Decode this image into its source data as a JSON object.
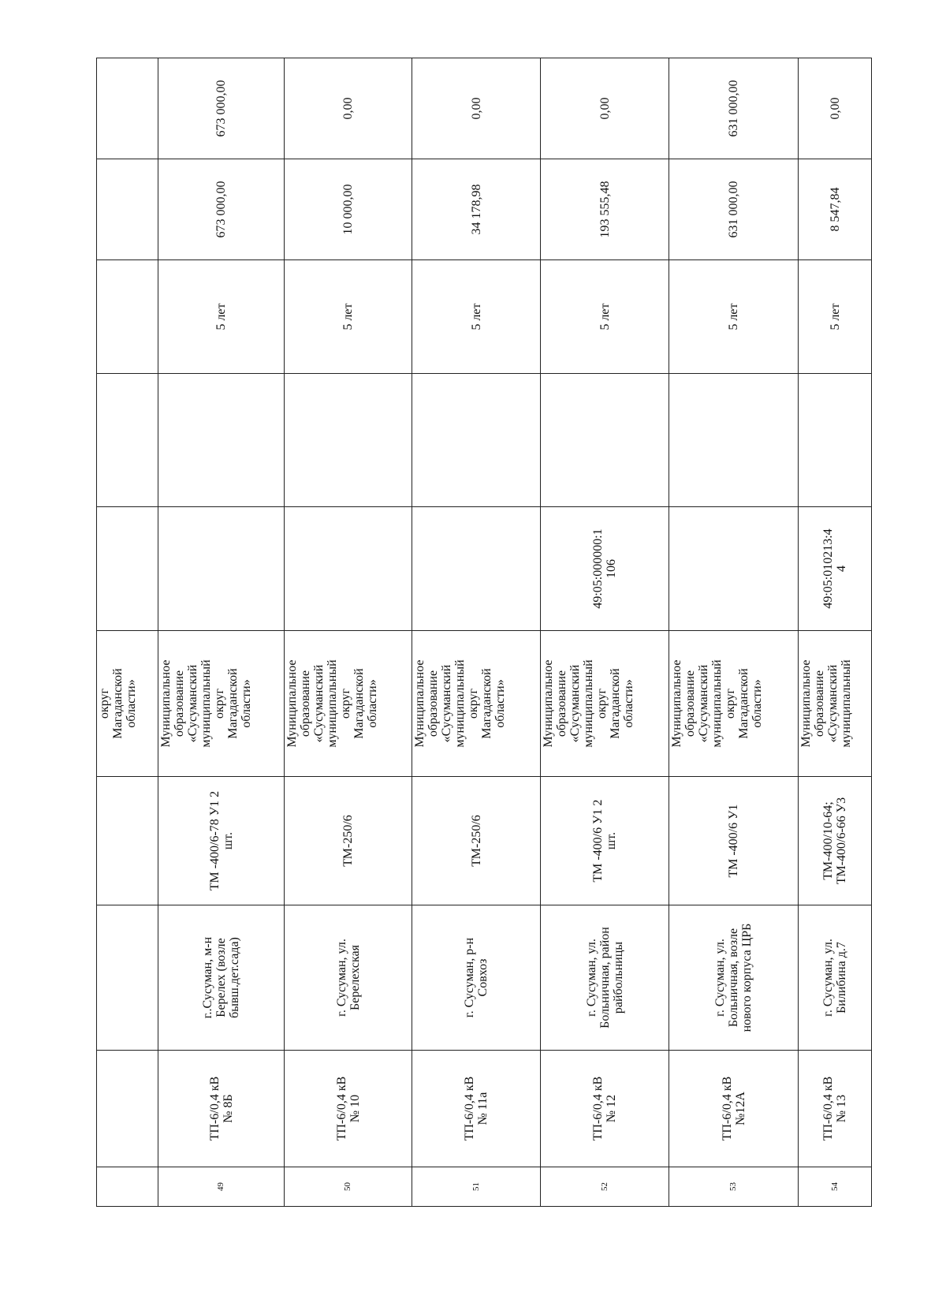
{
  "table": {
    "continuation_owner": "округ\nМагаданской\nобласти»",
    "rows": [
      {
        "num": "49",
        "name": "ТП-6/0,4 кВ\n№ 8Б",
        "address": "г..Сусуман, м-н\nБерелех (возле\nбывш.дет.сада)",
        "type": "ТМ -400/6-78 У1 2\nшт.",
        "owner": "Муниципальное\nобразование\n«Сусуманский\nмуниципальный\nокруг\nМагаданской\nобласти»",
        "cadastral": "",
        "empty": "",
        "term": "5 лет",
        "amount1": "673 000,00",
        "amount2": "673 000,00"
      },
      {
        "num": "50",
        "name": "ТП-6/0,4 кВ\n№ 10",
        "address": "г. Сусуман, ул.\nБерелехская",
        "type": "ТМ-250/6",
        "owner": "Муниципальное\nобразование\n«Сусуманский\nмуниципальный\nокруг\nМагаданской\nобласти»",
        "cadastral": "",
        "empty": "",
        "term": "5 лет",
        "amount1": "10 000,00",
        "amount2": "0,00"
      },
      {
        "num": "51",
        "name": "ТП-6/0,4 кВ\n№ 11а",
        "address": "г. Сусуман, р-н\nСовхоз",
        "type": "ТМ-250/6",
        "owner": "Муниципальное\nобразование\n«Сусуманский\nмуниципальный\nокруг\nМагаданской\nобласти»",
        "cadastral": "",
        "empty": "",
        "term": "5 лет",
        "amount1": "34 178,98",
        "amount2": "0,00"
      },
      {
        "num": "52",
        "name": "ТП-6/0,4 кВ\n№ 12",
        "address": "г. Сусуман, ул.\nБольничная, район\nрайбольницы",
        "type": "ТМ -400/6 У1 2\nшт.",
        "owner": "Муниципальное\nобразование\n«Сусуманский\nмуниципальный\nокруг\nМагаданской\nобласти»",
        "cadastral": "49:05:000000:1\n106",
        "empty": "",
        "term": "5 лет",
        "amount1": "193 555,48",
        "amount2": "0,00"
      },
      {
        "num": "53",
        "name": "ТП-6/0,4 кВ\n№12А",
        "address": "г. Сусуман, ул.\nБольничная, возле\nнового корпуса ЦРБ",
        "type": "ТМ -400/6 У1",
        "owner": "Муниципальное\nобразование\n«Сусуманский\nмуниципальный\nокруг\nМагаданской\nобласти»",
        "cadastral": "",
        "empty": "",
        "term": "5 лет",
        "amount1": "631 000,00",
        "amount2": "631 000,00"
      },
      {
        "num": "54",
        "name": "ТП-6/0,4 кВ\n№ 13",
        "address": "г. Сусуман, ул.\nБилибина д.7",
        "type": "ТМ-400/10-64;\nТМ-400/6-66 У3",
        "owner": "Муниципальное\nобразование\n«Сусуманский\nмуниципальный",
        "cadastral": "49:05:010213:4\n4",
        "empty": "",
        "term": "5 лет",
        "amount1": "8 547,84",
        "amount2": "0,00"
      }
    ]
  }
}
